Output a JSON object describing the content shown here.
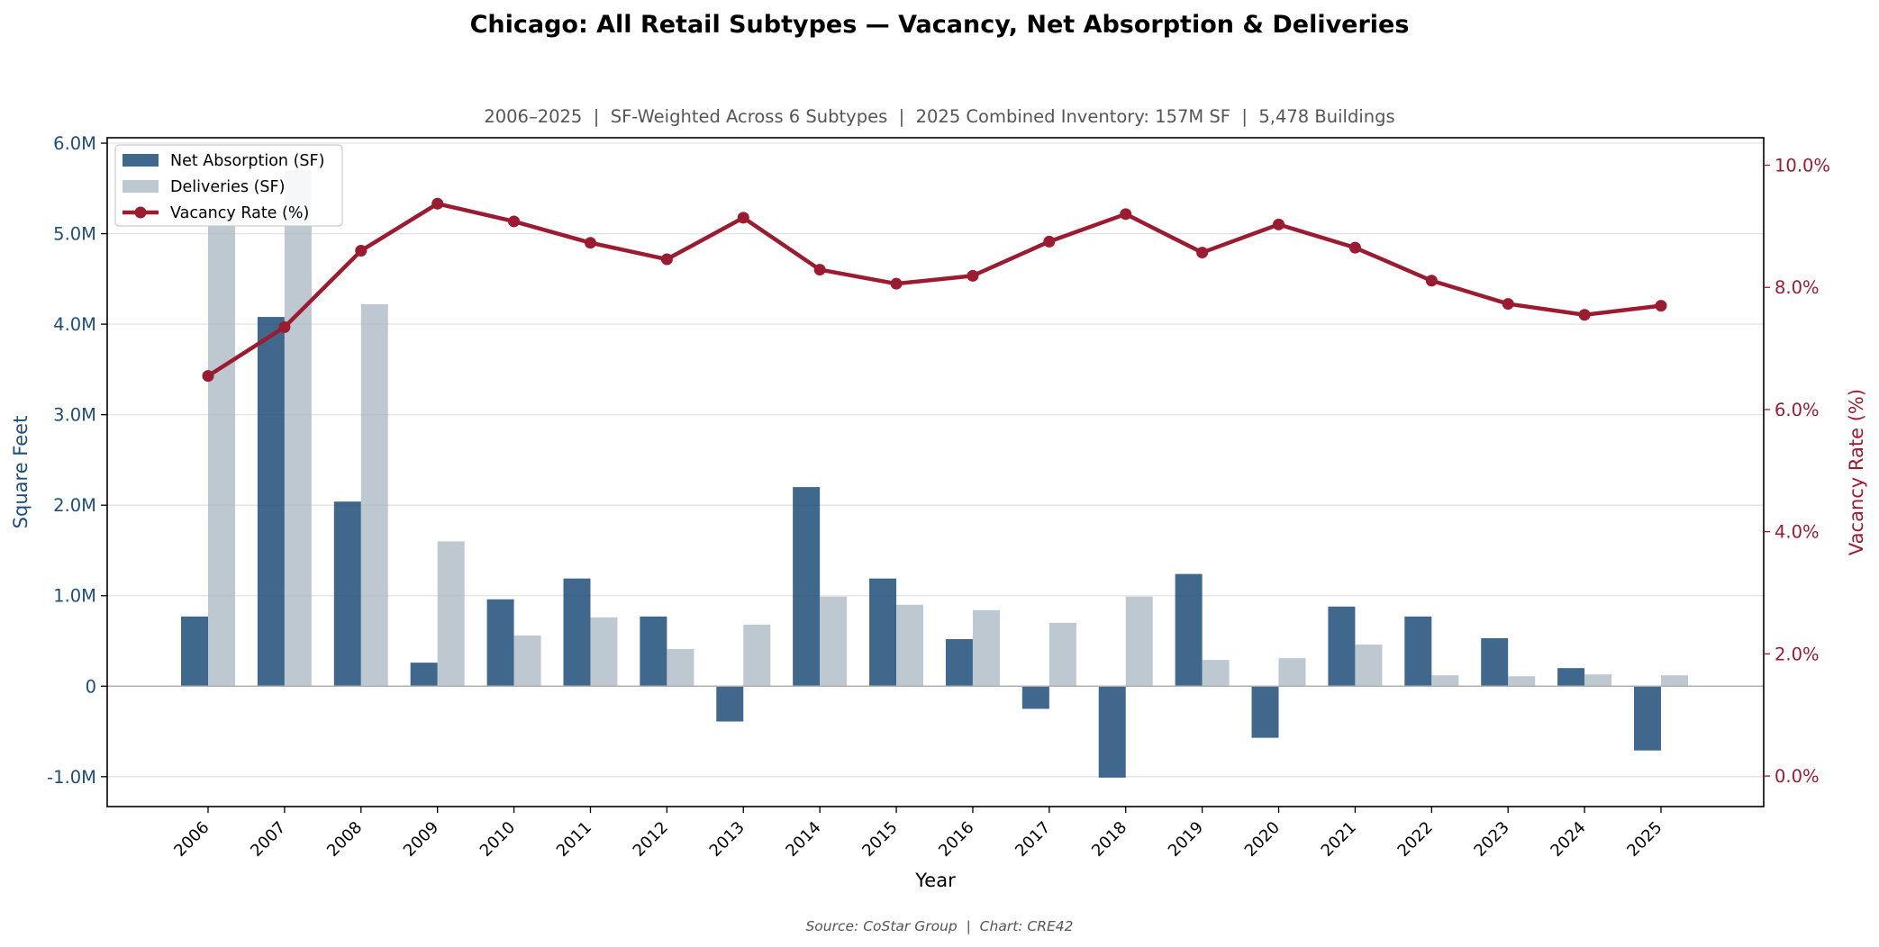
{
  "chart_data": {
    "type": "bar",
    "title": "Chicago: All Retail Subtypes — Vacancy, Net Absorption & Deliveries",
    "subtitle": "2006–2025  |  SF-Weighted Across 6 Subtypes  |  2025 Combined Inventory: 157M SF  |  5,478 Buildings",
    "source": "Source: CoStar Group  |  Chart: CRE42",
    "xlabel": "Year",
    "ylabel": "Square Feet",
    "y2label": "Vacancy Rate (%)",
    "categories": [
      "2006",
      "2007",
      "2008",
      "2009",
      "2010",
      "2011",
      "2012",
      "2013",
      "2014",
      "2015",
      "2016",
      "2017",
      "2018",
      "2019",
      "2020",
      "2021",
      "2022",
      "2023",
      "2024",
      "2025"
    ],
    "ylim": [
      -1330000,
      6060000
    ],
    "y2lim": [
      -0.5,
      10.45
    ],
    "yticks": [
      -1000000,
      0,
      1000000,
      2000000,
      3000000,
      4000000,
      5000000,
      6000000
    ],
    "ytick_labels": [
      "-1.0M",
      "0",
      "1.0M",
      "2.0M",
      "3.0M",
      "4.0M",
      "5.0M",
      "6.0M"
    ],
    "y2ticks": [
      0,
      2,
      4,
      6,
      8,
      10
    ],
    "y2tick_labels": [
      "0.0%",
      "2.0%",
      "4.0%",
      "6.0%",
      "8.0%",
      "10.0%"
    ],
    "grid": "horizontal",
    "legend_position": "top-left",
    "series": [
      {
        "name": "Net Absorption (SF)",
        "kind": "bar",
        "color": "#1f4e79",
        "values": [
          770000,
          4080000,
          2040000,
          260000,
          960000,
          1190000,
          770000,
          -390000,
          2200000,
          1190000,
          520000,
          -250000,
          -1010000,
          1240000,
          -570000,
          880000,
          770000,
          530000,
          200000,
          -710000
        ]
      },
      {
        "name": "Deliveries (SF)",
        "kind": "bar",
        "color": "#a7b6c1",
        "values": [
          5250000,
          5700000,
          4220000,
          1600000,
          560000,
          760000,
          410000,
          680000,
          990000,
          900000,
          840000,
          700000,
          990000,
          290000,
          310000,
          460000,
          120000,
          110000,
          130000,
          120000
        ]
      },
      {
        "name": "Vacancy Rate (%)",
        "kind": "line",
        "color": "#9b1b30",
        "values": [
          6.55,
          7.35,
          8.6,
          9.37,
          9.08,
          8.73,
          8.46,
          9.14,
          8.29,
          8.06,
          8.19,
          8.75,
          9.2,
          8.57,
          9.03,
          8.65,
          8.11,
          7.73,
          7.55,
          7.7
        ]
      }
    ]
  }
}
